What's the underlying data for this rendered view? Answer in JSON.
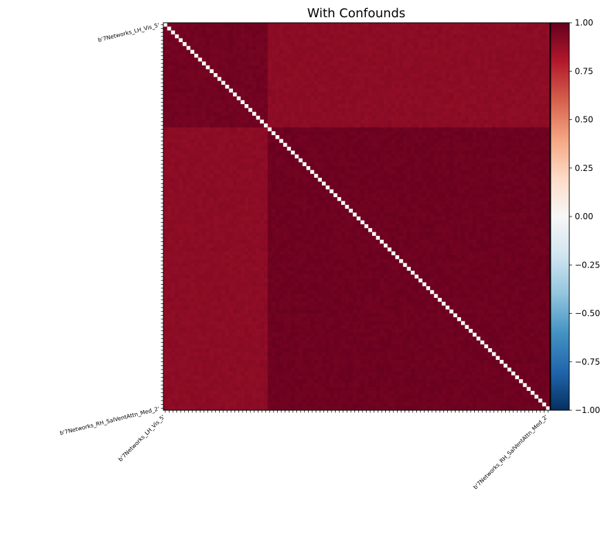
{
  "chart_data": {
    "type": "heatmap",
    "title": "With Confounds",
    "xlabel": "",
    "ylabel": "",
    "n_regions": 100,
    "region_label_pattern": "b'7Networks_{hemi}_{network}_{index}'",
    "row_labels_visible_first": "b'7Networks_LH_Vis_5'",
    "row_labels_visible_last": "b'7Networks_RH_SalVentAttn_Med_2'",
    "row_labels": [
      "b'7Networks_LH_Vis_5'",
      "b'7Networks_RH_SalVentAttn_Med_2'"
    ],
    "column_labels": [
      "b'7Networks_LH_Vis_5'",
      "b'7Networks_RH_SalVentAttn_Med_2'"
    ],
    "block_structure": {
      "block_a_size": 27,
      "within_block_a": 0.97,
      "within_block_b": 0.98,
      "between_blocks": 0.9,
      "diagonal": 1.0
    },
    "colorbar": {
      "colormap": "RdBu_r",
      "vmin": -1.0,
      "vmax": 1.0,
      "ticks": [
        "1.00",
        "0.75",
        "0.50",
        "0.25",
        "0.00",
        "−0.25",
        "−0.50",
        "−0.75",
        "−1.00"
      ]
    },
    "diagonal_color": "#ffffff",
    "grid": false,
    "legend": "none"
  }
}
